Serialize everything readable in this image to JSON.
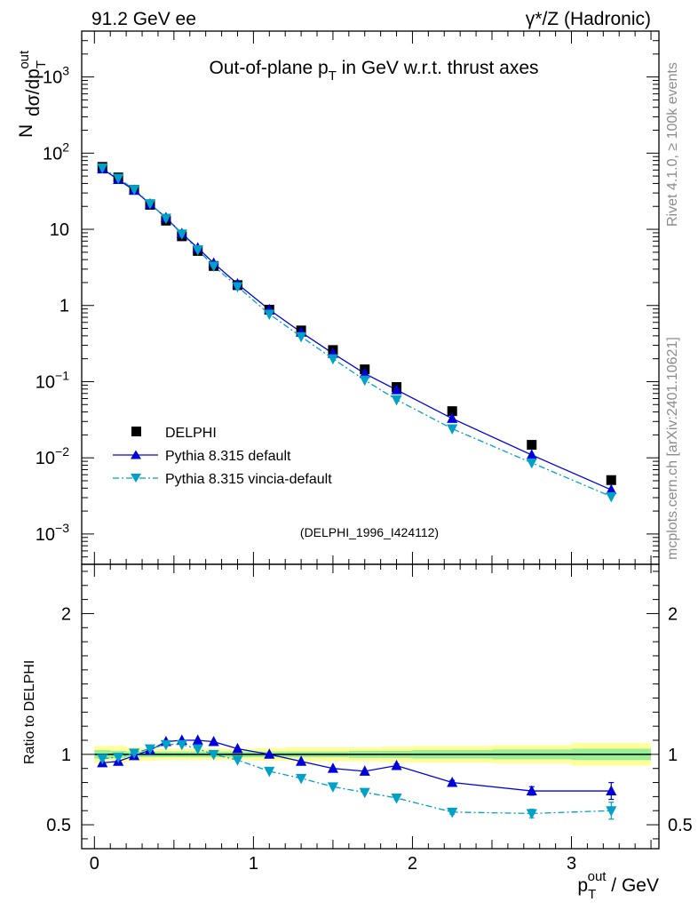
{
  "header": {
    "left": "91.2 GeV ee",
    "right": "γ*/Z (Hadronic)"
  },
  "side_labels": {
    "top": "Rivet 4.1.0, ≥ 100k events",
    "bottom": "mcplots.cern.ch [arXiv:2401.10621]"
  },
  "chart_data": [
    {
      "type": "scatter",
      "panel": "main",
      "title": "Out-of-plane p_T in GeV w.r.t. thrust axes",
      "title_parts": {
        "pre": "Out-of-plane p",
        "sub": "T",
        "post": " in GeV w.r.t. thrust axes"
      },
      "ylabel": "N  dσ/dp_T^out",
      "ylabel_parts": {
        "n": "N",
        "main": "dσ/dp",
        "sub": "T",
        "sup": "out"
      },
      "yscale": "log",
      "ylim": [
        0.0004,
        4000
      ],
      "xlim": [
        -0.08,
        3.55
      ],
      "y_ticks": [
        {
          "v": 1000,
          "base": "10",
          "exp": "3"
        },
        {
          "v": 100,
          "base": "10",
          "exp": "2"
        },
        {
          "v": 10,
          "base": "10",
          "exp": ""
        },
        {
          "v": 1,
          "base": "1",
          "exp": ""
        },
        {
          "v": 0.1,
          "base": "10",
          "exp": "−1"
        },
        {
          "v": 0.01,
          "base": "10",
          "exp": "−2"
        },
        {
          "v": 0.001,
          "base": "10",
          "exp": "−3"
        }
      ],
      "watermark": "(DELPHI_1996_I424112)",
      "legend": [
        "DELPHI",
        "Pythia 8.315 default",
        "Pythia 8.315 vincia-default"
      ],
      "legend_position": "bottom-left",
      "x": [
        0.05,
        0.15,
        0.25,
        0.35,
        0.45,
        0.55,
        0.65,
        0.75,
        0.9,
        1.1,
        1.3,
        1.5,
        1.7,
        1.9,
        2.25,
        2.75,
        3.25
      ],
      "x_err": [
        0.05,
        0.05,
        0.05,
        0.05,
        0.05,
        0.05,
        0.05,
        0.05,
        0.1,
        0.1,
        0.1,
        0.1,
        0.1,
        0.1,
        0.25,
        0.25,
        0.25
      ],
      "series": [
        {
          "name": "DELPHI",
          "color": "#000000",
          "marker": "square",
          "values": [
            66,
            48,
            33,
            21,
            13,
            8.1,
            5.2,
            3.3,
            1.85,
            0.88,
            0.47,
            0.26,
            0.145,
            0.085,
            0.041,
            0.0148,
            0.0051
          ]
        },
        {
          "name": "Pythia 8.315 default",
          "color": "#0000dd",
          "marker": "triangle-up",
          "line": "solid",
          "values": [
            62,
            45,
            32.5,
            21.5,
            14.2,
            8.8,
            5.7,
            3.6,
            1.92,
            0.88,
            0.445,
            0.235,
            0.128,
            0.078,
            0.0328,
            0.0109,
            0.0038
          ]
        },
        {
          "name": "Pythia 8.315 vincia-default",
          "color": "#00a0c8",
          "marker": "triangle-down",
          "line": "dashdot",
          "values": [
            64,
            47,
            33.5,
            21.8,
            14.0,
            8.7,
            5.4,
            3.3,
            1.77,
            0.77,
            0.39,
            0.2,
            0.105,
            0.058,
            0.0241,
            0.0086,
            0.0031
          ]
        }
      ]
    },
    {
      "type": "scatter",
      "panel": "ratio",
      "ylabel": "Ratio to DELPHI",
      "xlabel": "p_T^out / GeV",
      "xlabel_parts": {
        "main": "p",
        "sub": "T",
        "sup": "out",
        "post": " / GeV"
      },
      "ylim": [
        0.33,
        2.35
      ],
      "xlim": [
        -0.08,
        3.55
      ],
      "y_ticks": [
        {
          "v": 0.5,
          "label": "0.5"
        },
        {
          "v": 1,
          "label": "1"
        },
        {
          "v": 2,
          "label": "2"
        }
      ],
      "x_ticks": [
        {
          "v": 0,
          "label": "0"
        },
        {
          "v": 1,
          "label": "1"
        },
        {
          "v": 2,
          "label": "2"
        },
        {
          "v": 3,
          "label": "3"
        }
      ],
      "band_total": [
        0.06,
        0.06,
        0.05,
        0.045,
        0.04,
        0.04,
        0.04,
        0.04,
        0.04,
        0.045,
        0.05,
        0.05,
        0.05,
        0.055,
        0.06,
        0.065,
        0.08
      ],
      "band_stat": [
        0.03,
        0.025,
        0.02,
        0.02,
        0.02,
        0.02,
        0.02,
        0.02,
        0.02,
        0.02,
        0.02,
        0.02,
        0.025,
        0.025,
        0.03,
        0.035,
        0.04
      ],
      "series": [
        {
          "name": "Pythia 8.315 default",
          "color": "#0000dd",
          "marker": "triangle-up",
          "line": "solid",
          "values": [
            0.94,
            0.95,
            0.99,
            1.03,
            1.09,
            1.1,
            1.1,
            1.09,
            1.04,
            1.0,
            0.95,
            0.9,
            0.88,
            0.92,
            0.8,
            0.74,
            0.74
          ],
          "errors": [
            0.005,
            0.005,
            0.005,
            0.005,
            0.005,
            0.005,
            0.005,
            0.005,
            0.005,
            0.005,
            0.005,
            0.008,
            0.01,
            0.012,
            0.015,
            0.03,
            0.06
          ]
        },
        {
          "name": "Pythia 8.315 vincia-default",
          "color": "#00a0c8",
          "marker": "triangle-down",
          "line": "dashdot",
          "values": [
            0.97,
            0.98,
            1.01,
            1.04,
            1.07,
            1.07,
            1.04,
            1.0,
            0.96,
            0.88,
            0.83,
            0.77,
            0.73,
            0.69,
            0.59,
            0.58,
            0.6
          ],
          "errors": [
            0.005,
            0.005,
            0.005,
            0.005,
            0.005,
            0.005,
            0.005,
            0.005,
            0.005,
            0.005,
            0.005,
            0.008,
            0.01,
            0.012,
            0.015,
            0.03,
            0.06
          ]
        }
      ]
    }
  ],
  "colors": {
    "band_total": "#ffff99",
    "band_stat": "#99ee99",
    "data": "#000000",
    "default": "#0000dd",
    "vincia": "#00a0c8",
    "watermark": "#999999"
  }
}
